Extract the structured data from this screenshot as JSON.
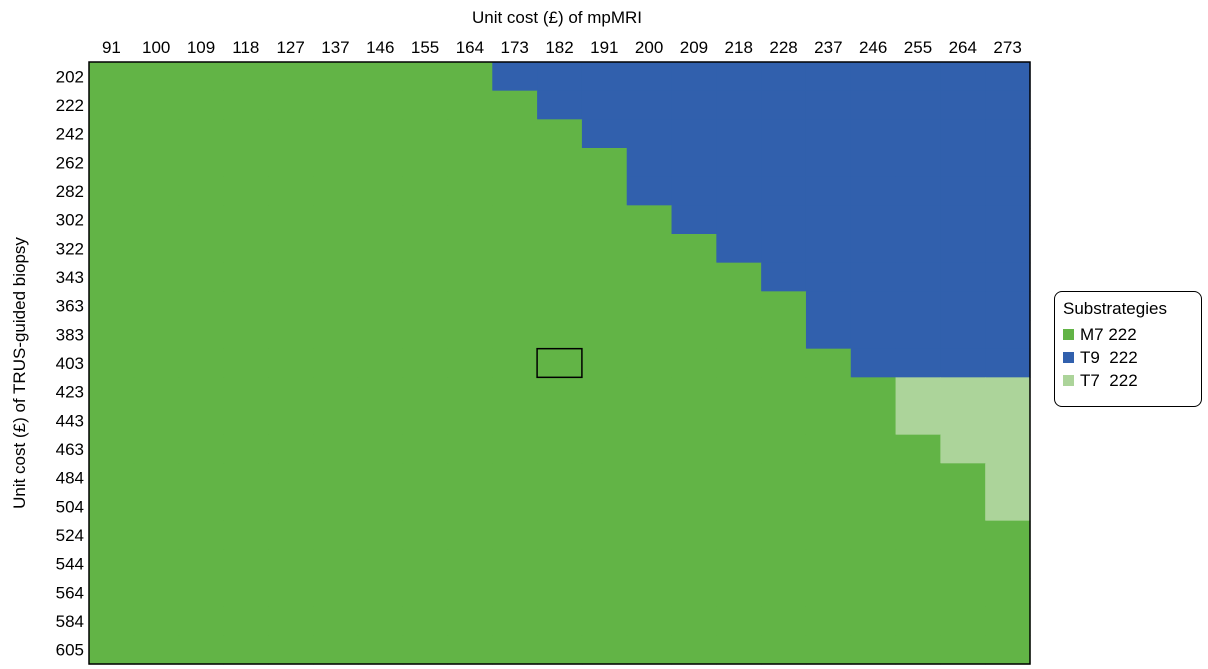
{
  "chart_data": {
    "type": "heatmap",
    "title": "",
    "xlabel": "Unit cost (£) of mpMRI",
    "ylabel": "Unit cost (£) of TRUS-guided biopsy",
    "x_categories": [
      "91",
      "100",
      "109",
      "118",
      "127",
      "137",
      "146",
      "155",
      "164",
      "173",
      "182",
      "191",
      "200",
      "209",
      "218",
      "228",
      "237",
      "246",
      "255",
      "264",
      "273"
    ],
    "y_categories": [
      "202",
      "222",
      "242",
      "262",
      "282",
      "302",
      "322",
      "343",
      "363",
      "383",
      "403",
      "423",
      "443",
      "463",
      "484",
      "504",
      "524",
      "544",
      "564",
      "584",
      "605"
    ],
    "legend": {
      "title": "Substrategies",
      "placement": "right",
      "entries": [
        {
          "key": "M7",
          "label": "M7 222",
          "color": "#62b446"
        },
        {
          "key": "T9",
          "label": "T9  222",
          "color": "#3160ad"
        },
        {
          "key": "T7",
          "label": "T7  222",
          "color": "#acd49a"
        }
      ]
    },
    "series": [
      {
        "name": "M7 222",
        "region": "all cells not listed below"
      },
      {
        "name": "T9  222",
        "cells_by_row": [
          {
            "y": "202",
            "x_from": "173",
            "x_to": "273"
          },
          {
            "y": "222",
            "x_from": "182",
            "x_to": "273"
          },
          {
            "y": "242",
            "x_from": "191",
            "x_to": "273"
          },
          {
            "y": "262",
            "x_from": "200",
            "x_to": "273"
          },
          {
            "y": "282",
            "x_from": "200",
            "x_to": "273"
          },
          {
            "y": "302",
            "x_from": "209",
            "x_to": "273"
          },
          {
            "y": "322",
            "x_from": "218",
            "x_to": "273"
          },
          {
            "y": "343",
            "x_from": "228",
            "x_to": "273"
          },
          {
            "y": "363",
            "x_from": "237",
            "x_to": "273"
          },
          {
            "y": "383",
            "x_from": "237",
            "x_to": "273"
          },
          {
            "y": "403",
            "x_from": "246",
            "x_to": "273"
          }
        ]
      },
      {
        "name": "T7  222",
        "cells_by_row": [
          {
            "y": "423",
            "x_from": "255",
            "x_to": "273"
          },
          {
            "y": "443",
            "x_from": "255",
            "x_to": "273"
          },
          {
            "y": "463",
            "x_from": "264",
            "x_to": "273"
          },
          {
            "y": "484",
            "x_from": "273",
            "x_to": "273"
          },
          {
            "y": "504",
            "x_from": "273",
            "x_to": "273"
          }
        ]
      }
    ],
    "highlight_cell": {
      "x": "182",
      "y": "403"
    },
    "grid": false
  }
}
